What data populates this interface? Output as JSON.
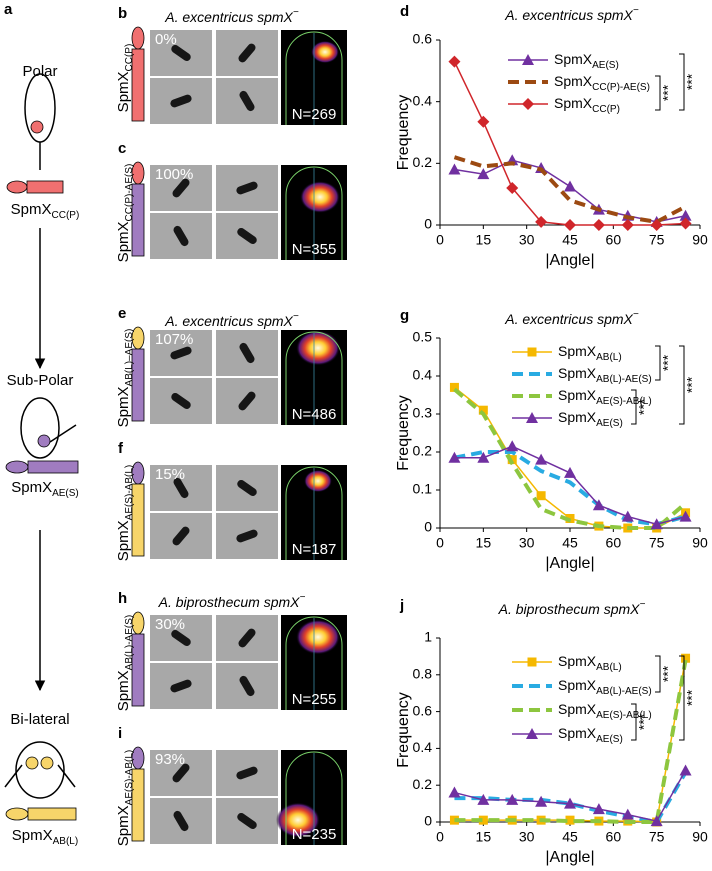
{
  "figure_letter": "a",
  "scheme": [
    {
      "label": "Polar",
      "construct": "SpmX",
      "construct_sub": "CC(P)"
    },
    {
      "label": "Sub-Polar",
      "construct": "SpmX",
      "construct_sub": "AE(S)"
    },
    {
      "label": "Bi-lateral",
      "construct": "SpmX",
      "construct_sub": "AB(L)"
    }
  ],
  "headings": [
    {
      "species": "A. excentricus spmX",
      "sup": "−"
    },
    {
      "species": "A. excentricus spmX",
      "sup": "−"
    },
    {
      "species": "A. biprosthecum spmX",
      "sup": "−"
    }
  ],
  "panels": [
    {
      "letter": "b",
      "construct": "SpmX",
      "construct_sub": "CC(P)",
      "percent": "0%",
      "n": "N=269"
    },
    {
      "letter": "c",
      "construct": "SpmX",
      "construct_sub": "CC(P)-AE(S)",
      "percent": "100%",
      "n": "N=355"
    },
    {
      "letter": "e",
      "construct": "SpmX",
      "construct_sub": "AB(L)–AE(S)",
      "percent": "107%",
      "n": "N=486"
    },
    {
      "letter": "f",
      "construct": "SpmX",
      "construct_sub": "AE(S)-AB(L)",
      "percent": "15%",
      "n": "N=187"
    },
    {
      "letter": "h",
      "construct": "SpmX",
      "construct_sub": "AB(L)-AE(S)",
      "percent": "30%",
      "n": "N=255"
    },
    {
      "letter": "i",
      "construct": "SpmX",
      "construct_sub": "AE(S)-AB(L)",
      "percent": "93%",
      "n": "N=235"
    }
  ],
  "chart_data": [
    {
      "type": "line",
      "letter": "d",
      "title": "A. excentricus spmX",
      "title_sup": "−",
      "xlabel": "|Angle|",
      "ylabel": "Frequency",
      "x": [
        5,
        15,
        25,
        35,
        45,
        55,
        65,
        75,
        85
      ],
      "xlim": [
        0,
        90
      ],
      "xticks": [
        0,
        15,
        30,
        45,
        60,
        75,
        90
      ],
      "ylim": [
        0,
        0.6
      ],
      "yticks": [
        0,
        0.2,
        0.4,
        0.6
      ],
      "series": [
        {
          "name": "SpmX",
          "name_sub": "AE(S)",
          "color": "#7030a0",
          "marker": "triangle",
          "dash": false,
          "values": [
            0.18,
            0.165,
            0.21,
            0.185,
            0.125,
            0.05,
            0.03,
            0.01,
            0.03
          ]
        },
        {
          "name": "SpmX",
          "name_sub": "CC(P)-AE(S)",
          "color": "#9c4a12",
          "marker": null,
          "dash": true,
          "values": [
            0.22,
            0.19,
            0.2,
            0.18,
            0.08,
            0.05,
            0.025,
            0.01,
            0.06
          ]
        },
        {
          "name": "SpmX",
          "name_sub": "CC(P)",
          "color": "#d0262b",
          "marker": "diamond",
          "dash": false,
          "values": [
            0.53,
            0.335,
            0.12,
            0.01,
            0,
            0,
            0,
            0,
            0.005
          ]
        }
      ],
      "significance": [
        "***",
        "***"
      ]
    },
    {
      "type": "line",
      "letter": "g",
      "title": "A. excentricus spmX",
      "title_sup": "−",
      "xlabel": "|Angle|",
      "ylabel": "Frequency",
      "x": [
        5,
        15,
        25,
        35,
        45,
        55,
        65,
        75,
        85
      ],
      "xlim": [
        0,
        90
      ],
      "xticks": [
        0,
        15,
        30,
        45,
        60,
        75,
        90
      ],
      "ylim": [
        0,
        0.5
      ],
      "yticks": [
        0,
        0.1,
        0.2,
        0.3,
        0.4,
        0.5
      ],
      "series": [
        {
          "name": "SpmX",
          "name_sub": "AB(L)",
          "color": "#f5b800",
          "marker": "square",
          "dash": false,
          "values": [
            0.37,
            0.31,
            0.18,
            0.085,
            0.025,
            0.005,
            0,
            0,
            0.04
          ]
        },
        {
          "name": "SpmX",
          "name_sub": "AB(L)-AE(S)",
          "color": "#29abe2",
          "marker": null,
          "dash": true,
          "values": [
            0.185,
            0.2,
            0.2,
            0.15,
            0.12,
            0.06,
            0.02,
            0.01,
            0.03
          ]
        },
        {
          "name": "SpmX",
          "name_sub": "AE(S)-AB(L)",
          "color": "#8dc63f",
          "marker": null,
          "dash": true,
          "values": [
            0.365,
            0.3,
            0.17,
            0.05,
            0.02,
            0.005,
            0,
            0,
            0.065
          ]
        },
        {
          "name": "SpmX",
          "name_sub": "AE(S)",
          "color": "#7030a0",
          "marker": "triangle",
          "dash": false,
          "values": [
            0.185,
            0.185,
            0.215,
            0.18,
            0.145,
            0.06,
            0.03,
            0.01,
            0.03
          ]
        }
      ],
      "significance": [
        "***",
        "***",
        "***"
      ]
    },
    {
      "type": "line",
      "letter": "j",
      "title": "A. biprosthecum spmX",
      "title_sup": "−",
      "xlabel": "|Angle|",
      "ylabel": "Frequency",
      "x": [
        5,
        15,
        25,
        35,
        45,
        55,
        65,
        75,
        85
      ],
      "xlim": [
        0,
        90
      ],
      "xticks": [
        0,
        15,
        30,
        45,
        60,
        75,
        90
      ],
      "ylim": [
        0,
        1
      ],
      "yticks": [
        0,
        0.2,
        0.4,
        0.6,
        0.8,
        1
      ],
      "series": [
        {
          "name": "SpmX",
          "name_sub": "AB(L)",
          "color": "#f5b800",
          "marker": "square",
          "dash": false,
          "values": [
            0.01,
            0.01,
            0.01,
            0.01,
            0.01,
            0.005,
            0.005,
            0,
            0.89
          ]
        },
        {
          "name": "SpmX",
          "name_sub": "AB(L)-AE(S)",
          "color": "#29abe2",
          "marker": null,
          "dash": true,
          "values": [
            0.13,
            0.13,
            0.12,
            0.12,
            0.1,
            0.06,
            0.03,
            0,
            0.27
          ]
        },
        {
          "name": "SpmX",
          "name_sub": "AE(S)-AB(L)",
          "color": "#8dc63f",
          "marker": null,
          "dash": true,
          "values": [
            0.01,
            0.01,
            0.01,
            0.01,
            0.005,
            0.005,
            0,
            0,
            0.88
          ]
        },
        {
          "name": "SpmX",
          "name_sub": "AE(S)",
          "color": "#7030a0",
          "marker": "triangle",
          "dash": false,
          "values": [
            0.16,
            0.12,
            0.12,
            0.11,
            0.1,
            0.07,
            0.04,
            0.005,
            0.28
          ]
        }
      ],
      "significance": [
        "***",
        "***",
        "***"
      ]
    }
  ]
}
